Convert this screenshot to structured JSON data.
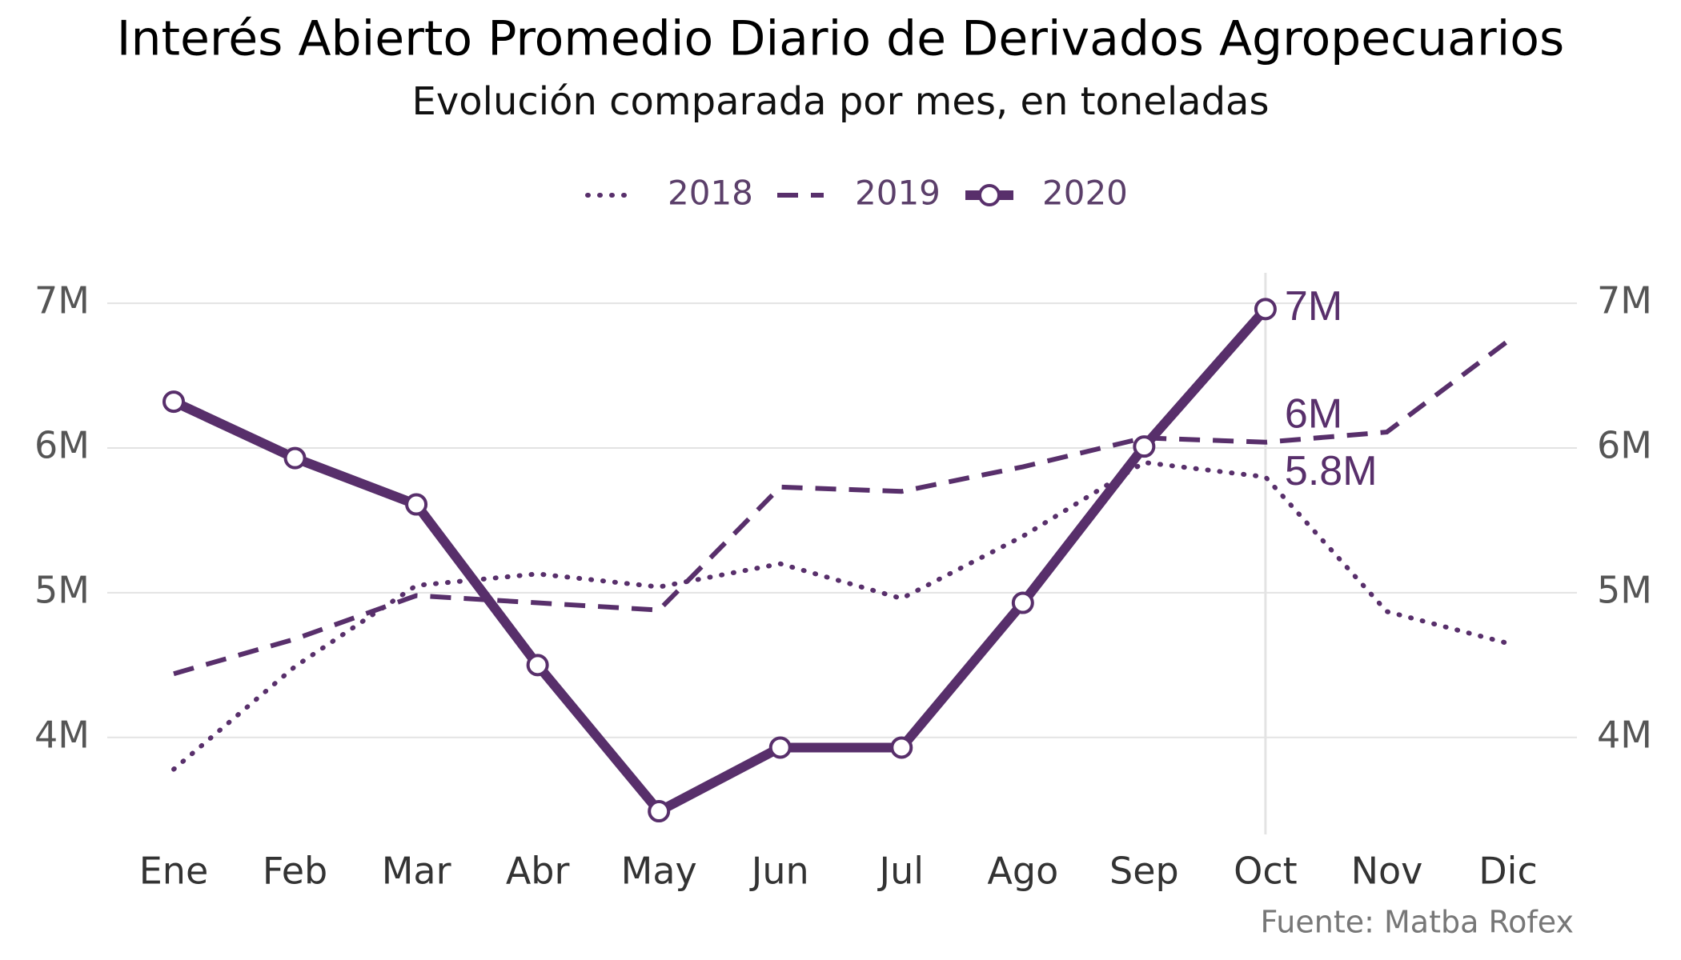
{
  "chart_data": {
    "type": "line",
    "title": "Interés Abierto Promedio Diario de Derivados Agropecuarios",
    "subtitle": "Evolución comparada por mes, en toneladas",
    "source": "Fuente: Matba Rofex",
    "categories": [
      "Ene",
      "Feb",
      "Mar",
      "Abr",
      "May",
      "Jun",
      "Jul",
      "Ago",
      "Sep",
      "Oct",
      "Nov",
      "Dic"
    ],
    "series": [
      {
        "name": "2018",
        "color": "#582f6b",
        "style": "dotted",
        "values": [
          3780000,
          4490000,
          5050000,
          5130000,
          5040000,
          5200000,
          4960000,
          5390000,
          5900000,
          5800000,
          4870000,
          4650000
        ],
        "value_labels": [
          null,
          null,
          null,
          null,
          null,
          null,
          null,
          null,
          null,
          "5.8M",
          null,
          null
        ]
      },
      {
        "name": "2019",
        "color": "#582f6b",
        "style": "dashed",
        "values": [
          4440000,
          4680000,
          4980000,
          4930000,
          4880000,
          5730000,
          5700000,
          5870000,
          6070000,
          6040000,
          6110000,
          6740000
        ],
        "value_labels": [
          null,
          null,
          null,
          null,
          null,
          null,
          null,
          null,
          null,
          "6M",
          null,
          null
        ]
      },
      {
        "name": "2020",
        "color": "#582f6b",
        "style": "solid-markers",
        "values": [
          6320000,
          5930000,
          5610000,
          4500000,
          3490000,
          3930000,
          3930000,
          4930000,
          6010000,
          6960000,
          null,
          null
        ],
        "value_labels": [
          null,
          null,
          null,
          null,
          null,
          null,
          null,
          null,
          null,
          "7M",
          null,
          null
        ]
      }
    ],
    "ylim": [
      3330000,
      7100000
    ],
    "yticks": [
      {
        "value": 4000000,
        "label": "4M"
      },
      {
        "value": 5000000,
        "label": "5M"
      },
      {
        "value": 6000000,
        "label": "6M"
      },
      {
        "value": 7000000,
        "label": "7M"
      }
    ],
    "grid": true,
    "legend": "top"
  }
}
